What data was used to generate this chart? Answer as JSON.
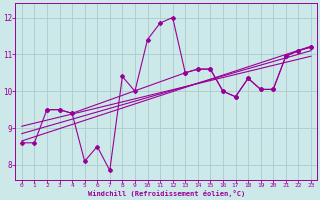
{
  "background_color": "#cde8e8",
  "grid_color": "#aacccc",
  "line_color": "#990099",
  "marker_color": "#990099",
  "xlabel": "Windchill (Refroidissement éolien,°C)",
  "xlabel_color": "#990099",
  "tick_color": "#990099",
  "xlim": [
    -0.5,
    23.5
  ],
  "ylim": [
    7.6,
    12.4
  ],
  "xticks": [
    0,
    1,
    2,
    3,
    4,
    5,
    6,
    7,
    8,
    9,
    10,
    11,
    12,
    13,
    14,
    15,
    16,
    17,
    18,
    19,
    20,
    21,
    22,
    23
  ],
  "yticks": [
    8,
    9,
    10,
    11,
    12
  ],
  "line1_x": [
    0,
    1,
    2,
    3,
    4,
    5,
    6,
    7,
    8,
    9,
    10,
    11,
    12,
    13,
    14,
    15,
    16,
    17,
    18,
    19,
    20,
    21,
    22,
    23
  ],
  "line1_y": [
    8.6,
    8.6,
    9.5,
    9.5,
    9.4,
    8.1,
    8.5,
    7.85,
    10.4,
    10.0,
    11.4,
    11.85,
    12.0,
    10.5,
    10.6,
    10.6,
    10.0,
    9.85,
    10.35,
    10.05,
    10.05,
    10.95,
    11.1,
    11.2
  ],
  "line2_x": [
    2,
    3,
    4,
    13,
    14,
    15,
    16,
    17,
    18,
    19,
    20,
    21,
    22,
    23
  ],
  "line2_y": [
    9.5,
    9.5,
    9.4,
    10.5,
    10.6,
    10.6,
    10.0,
    9.85,
    10.35,
    10.05,
    10.05,
    10.95,
    11.1,
    11.2
  ],
  "trend1_x": [
    0,
    23
  ],
  "trend1_y": [
    8.65,
    11.22
  ],
  "trend2_x": [
    0,
    23
  ],
  "trend2_y": [
    8.85,
    11.1
  ],
  "trend3_x": [
    0,
    23
  ],
  "trend3_y": [
    9.05,
    10.95
  ]
}
